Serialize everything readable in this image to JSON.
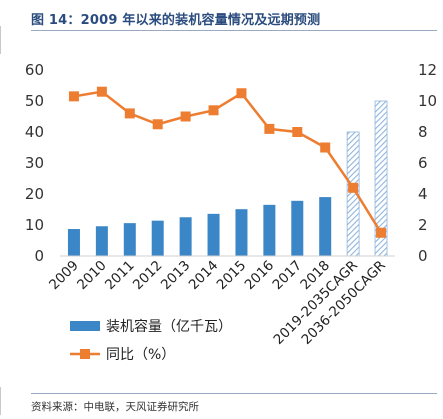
{
  "figure": {
    "title": "图 14：2009 年以来的装机容量情况及远期预测",
    "source": "资料来源：中电联，天风证券研究所"
  },
  "colors": {
    "bar": "#3b86c6",
    "line": "#ed7d31",
    "hatch": "#8fb5dd",
    "title": "#2b4c7e"
  },
  "chart_data": {
    "type": "bar",
    "categories": [
      "2009",
      "2010",
      "2011",
      "2012",
      "2013",
      "2014",
      "2015",
      "2016",
      "2017",
      "2018",
      "2019-2035CAGR",
      "2036-2050CAGR"
    ],
    "series": [
      {
        "name": "装机容量（亿千瓦）",
        "type": "bar",
        "axis": "left",
        "values": [
          8.7,
          9.6,
          10.6,
          11.4,
          12.5,
          13.6,
          15.1,
          16.5,
          17.8,
          19.0,
          null,
          null
        ]
      },
      {
        "name": "同比（%）",
        "type": "line",
        "axis": "right",
        "values": [
          10.3,
          10.6,
          9.2,
          8.5,
          9.0,
          9.4,
          10.5,
          8.2,
          8.0,
          7.0,
          4.4,
          1.5
        ]
      }
    ],
    "hatched_bars": {
      "axis": "right",
      "categories": [
        "2019-2035CAGR",
        "2036-2050CAGR"
      ],
      "values": [
        8.0,
        10.0
      ]
    },
    "y_left": {
      "range": [
        0,
        60
      ],
      "ticks": [
        "0",
        "10",
        "20",
        "30",
        "40",
        "50",
        "60"
      ]
    },
    "y_right": {
      "range": [
        0,
        12
      ],
      "ticks": [
        "0",
        "2",
        "4",
        "6",
        "8",
        "10",
        "12"
      ]
    },
    "grid": false,
    "legend_position": "bottom-left"
  }
}
